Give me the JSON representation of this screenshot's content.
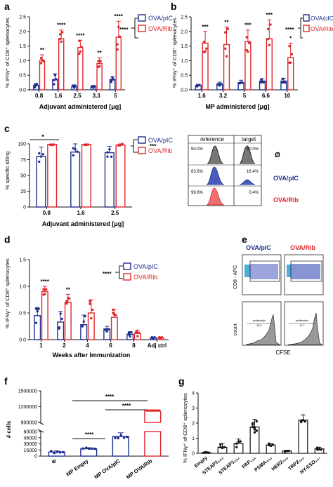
{
  "colors": {
    "ova_pic": "#1f2f8f",
    "ova_rib": "#e0262b",
    "gray": "#444444"
  },
  "panels": {
    "a": {
      "letter": "a",
      "ylabel": "% IFNγ⁺ of CD8⁺ splenocytes",
      "xlabel": "Adjuvant administered [μg]",
      "legend": [
        "OVA/pIC",
        "OVA/Rib"
      ],
      "legend_sig": "****",
      "sig_marks": [
        "**",
        "****",
        "****",
        "**",
        "****"
      ]
    },
    "b": {
      "letter": "b",
      "ylabel": "% IFNγ⁺ of CD8⁺ splenocytes",
      "xlabel": "MP administered [μg]",
      "legend": [
        "OVA/pIC",
        "OVA/Rib"
      ],
      "legend_sig": "****",
      "sig_marks": [
        "***",
        "**",
        "***",
        "***",
        "*"
      ]
    },
    "c": {
      "letter": "c",
      "ylabel": "% specific killing",
      "xlabel": "Adjuvant administered [μg]",
      "legend": [
        "OVA/pIC",
        "OVA/Rib"
      ],
      "legend_sig": "***",
      "top_sig": "*",
      "flow_headers": [
        "reference",
        "target"
      ],
      "flow_rows": [
        {
          "left_pct": "50.0%",
          "right_pct": "50.0%",
          "label": "Ø"
        },
        {
          "left_pct": "83.6%",
          "right_pct": "16.4%",
          "label": "OVA/pIC"
        },
        {
          "left_pct": "99.6%",
          "right_pct": "0.4%",
          "label": "OVA/Rib"
        }
      ]
    },
    "d": {
      "letter": "d",
      "ylabel": "% IFNγ⁺ of CD8⁺ splenocytes",
      "xlabel": "Weeks after Immunization",
      "legend": [
        "OVA/pIC",
        "OVA/Rib"
      ],
      "legend_sig": "****",
      "sig_marks": [
        "****",
        "**"
      ]
    },
    "e": {
      "letter": "e",
      "col_titles": [
        "OVA/pIC",
        "OVA/Rib"
      ],
      "row_labels": [
        "CD8 - APC",
        "count"
      ],
      "xlabel": "CFSE",
      "gate_label": "proliferation",
      "gate_values": [
        "80.0",
        "91.7"
      ]
    },
    "f": {
      "letter": "f",
      "ylabel": "# cells",
      "sig_marks": [
        "****",
        "****",
        "****"
      ],
      "symbol": "Φ"
    },
    "g": {
      "letter": "g",
      "ylabel": "% IFNγ⁺ of CD8⁺ splenocytes"
    }
  },
  "chart_data": [
    {
      "panel": "a",
      "type": "bar",
      "categories": [
        "0.8",
        "1.6",
        "2.5",
        "3.3",
        "5"
      ],
      "ylim": [
        0,
        2.5
      ],
      "yticks": [
        0.0,
        0.5,
        1.0,
        1.5,
        2.0,
        2.5
      ],
      "xlabel": "Adjuvant administered [μg]",
      "ylabel": "% IFNγ⁺ of CD8⁺ splenocytes",
      "series": [
        {
          "name": "OVA/pIC",
          "values": [
            0.15,
            0.35,
            0.12,
            0.1,
            0.35
          ],
          "err": [
            0.08,
            0.2,
            0.05,
            0.04,
            0.1
          ]
        },
        {
          "name": "OVA/Rib",
          "values": [
            1.0,
            1.75,
            1.45,
            0.9,
            1.8
          ],
          "err": [
            0.2,
            0.3,
            0.25,
            0.2,
            0.55
          ]
        }
      ]
    },
    {
      "panel": "b",
      "type": "bar",
      "categories": [
        "1.6",
        "3.2",
        "5",
        "6.6",
        "10"
      ],
      "ylim": [
        0,
        2.5
      ],
      "yticks": [
        0.0,
        0.5,
        1.0,
        1.5,
        2.0,
        2.5
      ],
      "xlabel": "MP administered [μg]",
      "ylabel": "% IFNγ⁺ of CD8⁺ splenocytes",
      "series": [
        {
          "name": "OVA/pIC",
          "values": [
            0.15,
            0.2,
            0.25,
            0.3,
            0.3
          ],
          "err": [
            0.04,
            0.06,
            0.08,
            0.08,
            0.1
          ]
        },
        {
          "name": "OVA/Rib",
          "values": [
            1.6,
            1.55,
            1.65,
            1.75,
            1.1
          ],
          "err": [
            0.4,
            0.6,
            0.4,
            0.65,
            0.5
          ]
        }
      ]
    },
    {
      "panel": "c",
      "type": "bar",
      "categories": [
        "0.8",
        "1.6",
        "2.5"
      ],
      "ylim": [
        0,
        100
      ],
      "yticks": [
        0,
        25,
        50,
        75,
        100
      ],
      "xlabel": "Adjuvant administered [μg]",
      "ylabel": "% specific killing",
      "series": [
        {
          "name": "OVA/pIC",
          "values": [
            80,
            87,
            86
          ],
          "err": [
            15,
            13,
            10
          ]
        },
        {
          "name": "OVA/Rib",
          "values": [
            99,
            99,
            98
          ],
          "err": [
            1,
            1,
            2
          ]
        }
      ]
    },
    {
      "panel": "d",
      "type": "bar",
      "categories": [
        "1",
        "2",
        "4",
        "6",
        "8",
        "Adj ctrl"
      ],
      "ylim": [
        0,
        1.5
      ],
      "yticks": [
        0.0,
        0.5,
        1.0,
        1.5
      ],
      "xlabel": "Weeks after Immunization",
      "ylabel": "% IFNγ⁺ of CD8⁺ splenocytes",
      "series": [
        {
          "name": "OVA/pIC",
          "values": [
            0.45,
            0.33,
            0.28,
            0.2,
            0.1,
            0.03
          ],
          "err": [
            0.15,
            0.2,
            0.18,
            0.05,
            0.05,
            0.02
          ]
        },
        {
          "name": "OVA/Rib",
          "values": [
            0.9,
            0.7,
            0.5,
            0.42,
            0.12,
            0.03
          ],
          "err": [
            0.1,
            0.15,
            0.25,
            0.15,
            0.06,
            0.02
          ]
        }
      ]
    },
    {
      "panel": "f",
      "type": "bar",
      "categories": [
        "Φ",
        "MP Empty",
        "MP OVA/pIC",
        "MP OVA/Rib"
      ],
      "yticks": [
        "0",
        "15000",
        "30000",
        "45000",
        "60000",
        "900000",
        "1200000",
        "1500000"
      ],
      "ylabel": "# cells",
      "axis_break": true,
      "values": [
        10000,
        18000,
        48000,
        1120000
      ],
      "err": [
        3000,
        2500,
        9000,
        10000
      ]
    },
    {
      "panel": "g",
      "type": "bar",
      "categories": [
        "Empty",
        "STEAP1₁₈₃",
        "STEAP1₂₉₂",
        "PAP₁₃₅",
        "PSMA₄₄₃",
        "HER2₃₆₉",
        "TRP2₁₈₀",
        "NY-ESO₁₅₇"
      ],
      "ylim": [
        0,
        4
      ],
      "yticks": [
        0,
        1,
        2,
        3,
        4
      ],
      "ylabel": "% IFNγ⁺ of CD8⁺ splenocytes",
      "values": [
        0.05,
        0.4,
        0.65,
        1.75,
        0.55,
        0.15,
        2.2,
        0.3
      ],
      "err": [
        0.03,
        0.25,
        0.3,
        0.5,
        0.1,
        0.04,
        0.35,
        0.1
      ]
    }
  ]
}
